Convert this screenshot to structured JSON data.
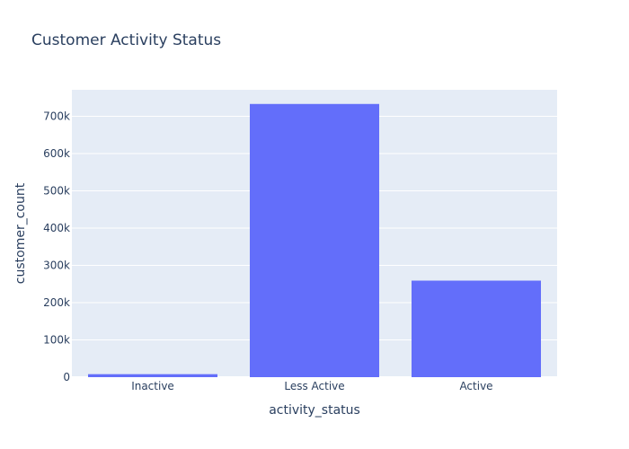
{
  "chart_data": {
    "type": "bar",
    "title": "Customer Activity Status",
    "xlabel": "activity_status",
    "ylabel": "customer_count",
    "categories": [
      "Inactive",
      "Less Active",
      "Active"
    ],
    "values": [
      8000,
      733000,
      259000
    ],
    "ylim": [
      0,
      771000
    ],
    "yticks": [
      0,
      100000,
      200000,
      300000,
      400000,
      500000,
      600000,
      700000
    ],
    "ytick_labels": [
      "0",
      "100k",
      "200k",
      "300k",
      "400k",
      "500k",
      "600k",
      "700k"
    ],
    "grid": true,
    "legend": "none",
    "colors": {
      "bar": "#636efa",
      "plot_bg": "#e5ecf6",
      "text": "#2a3f5f",
      "grid": "#ffffff"
    }
  }
}
